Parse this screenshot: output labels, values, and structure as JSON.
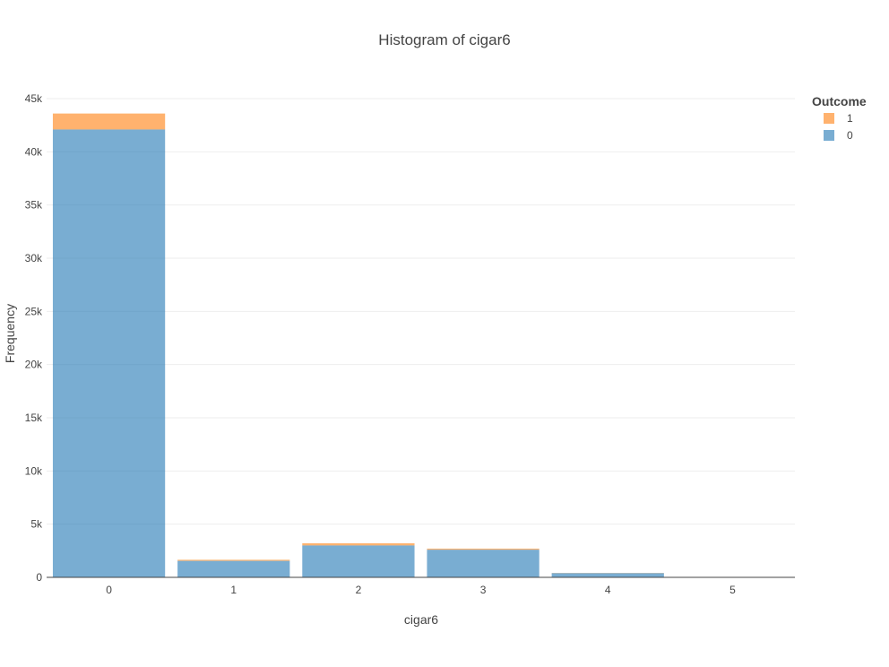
{
  "chart_data": {
    "type": "bar",
    "barmode": "stack",
    "title": "Histogram of cigar6",
    "xlabel": "cigar6",
    "ylabel": "Frequency",
    "categories": [
      "0",
      "1",
      "2",
      "3",
      "4",
      "5"
    ],
    "ylim": [
      0,
      45000
    ],
    "yticks": [
      0,
      5000,
      10000,
      15000,
      20000,
      25000,
      30000,
      35000,
      40000,
      45000
    ],
    "ytick_labels": [
      "0",
      "5k",
      "10k",
      "15k",
      "20k",
      "25k",
      "30k",
      "35k",
      "40k",
      "45k"
    ],
    "grid": true,
    "legend": {
      "title": "Outcome",
      "placement": "top-right",
      "order": [
        "1",
        "0"
      ]
    },
    "series": [
      {
        "name": "0",
        "color": "#1f77b4",
        "values": [
          42100,
          1550,
          3000,
          2600,
          400,
          10
        ]
      },
      {
        "name": "1",
        "color": "#ff7f0e",
        "values": [
          1500,
          100,
          200,
          100,
          20,
          0
        ]
      }
    ]
  }
}
